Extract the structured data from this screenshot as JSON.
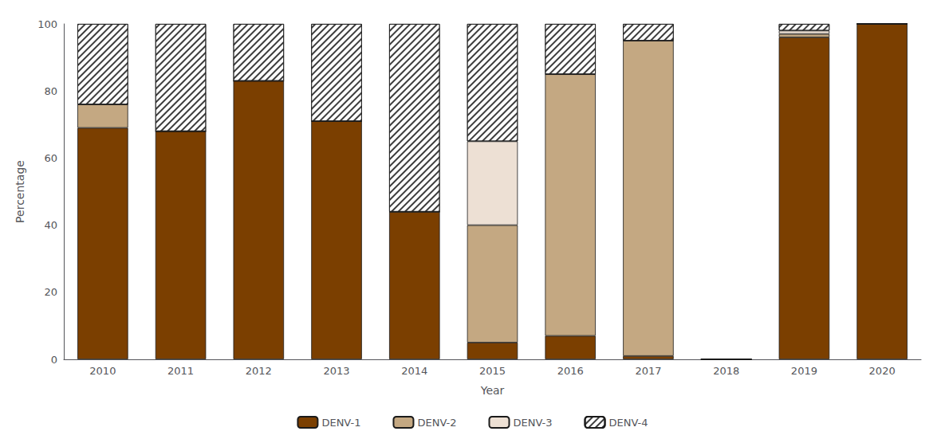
{
  "chart_data": {
    "type": "bar",
    "stacked": true,
    "xlabel": "Year",
    "ylabel": "Percentage",
    "categories": [
      "2010",
      "2011",
      "2012",
      "2013",
      "2014",
      "2015",
      "2016",
      "2017",
      "2018",
      "2019",
      "2020"
    ],
    "series": [
      {
        "name": "DENV-1",
        "color": "#7B3F00",
        "values": [
          69,
          68,
          83,
          71,
          44,
          5,
          7,
          1,
          0,
          96,
          100
        ]
      },
      {
        "name": "DENV-2",
        "color": "#C4A882",
        "values": [
          7,
          0,
          0,
          0,
          0,
          35,
          78,
          94,
          0,
          1,
          0
        ]
      },
      {
        "name": "DENV-3",
        "color": "#EDE0D4",
        "values": [
          0,
          0,
          0,
          0,
          0,
          25,
          0,
          0,
          0,
          1,
          0
        ]
      },
      {
        "name": "DENV-4",
        "color": "#FFFFFF",
        "values": [
          24,
          32,
          17,
          29,
          56,
          35,
          15,
          5,
          0,
          2,
          0
        ]
      }
    ],
    "ylim": [
      0,
      100
    ],
    "yticks": [
      0,
      20,
      40,
      60,
      80,
      100
    ],
    "grid": false,
    "legend": "bottom"
  }
}
